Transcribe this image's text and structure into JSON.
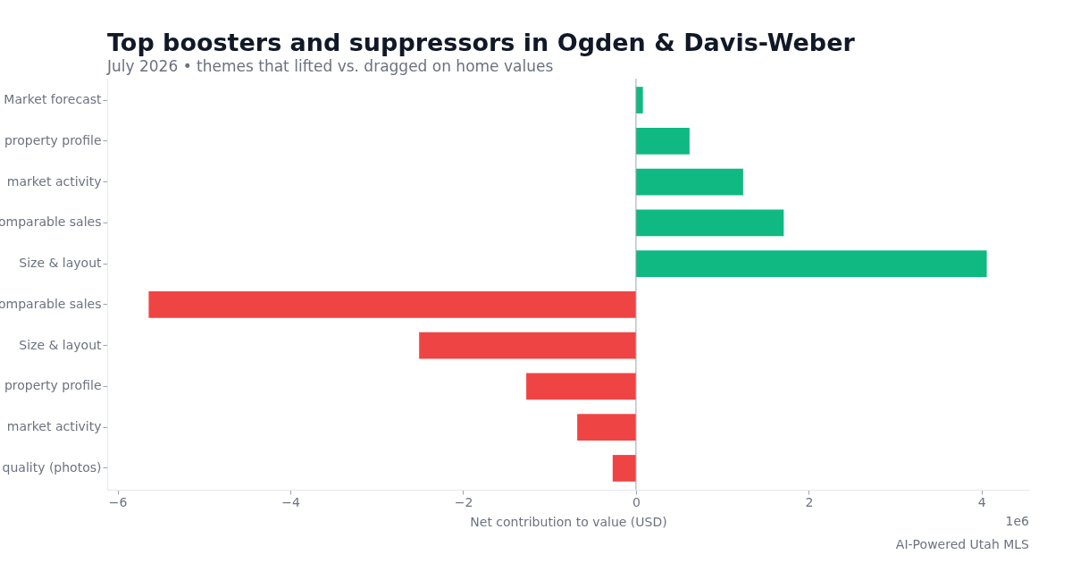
{
  "chart_data": {
    "type": "bar",
    "orientation": "horizontal",
    "title": "Top boosters and suppressors in Ogden & Davis-Weber",
    "subtitle": "July 2026 • themes that lifted vs. dragged on home values",
    "xlabel": "Net contribution to value (USD)",
    "categories": [
      "Market forecast",
      "property profile",
      "market activity",
      "omparable sales",
      "Size & layout",
      "omparable sales",
      "Size & layout",
      "property profile",
      "market activity",
      "quality (photos)"
    ],
    "values": [
      0.08,
      0.62,
      1.24,
      1.71,
      4.06,
      -5.64,
      -2.51,
      -1.27,
      -0.68,
      -0.27
    ],
    "colors": [
      "#10b981",
      "#10b981",
      "#10b981",
      "#10b981",
      "#10b981",
      "#ef4444",
      "#ef4444",
      "#ef4444",
      "#ef4444",
      "#ef4444"
    ],
    "xlim": [
      -6.12,
      4.55
    ],
    "xticks": [
      -6,
      -4,
      -2,
      0,
      2,
      4
    ],
    "ref_lines": [
      {
        "axis": "x",
        "value": 0,
        "color": "#9ca3af"
      }
    ],
    "annotations": [
      "1e6",
      "AI-Powered Utah MLS"
    ]
  }
}
